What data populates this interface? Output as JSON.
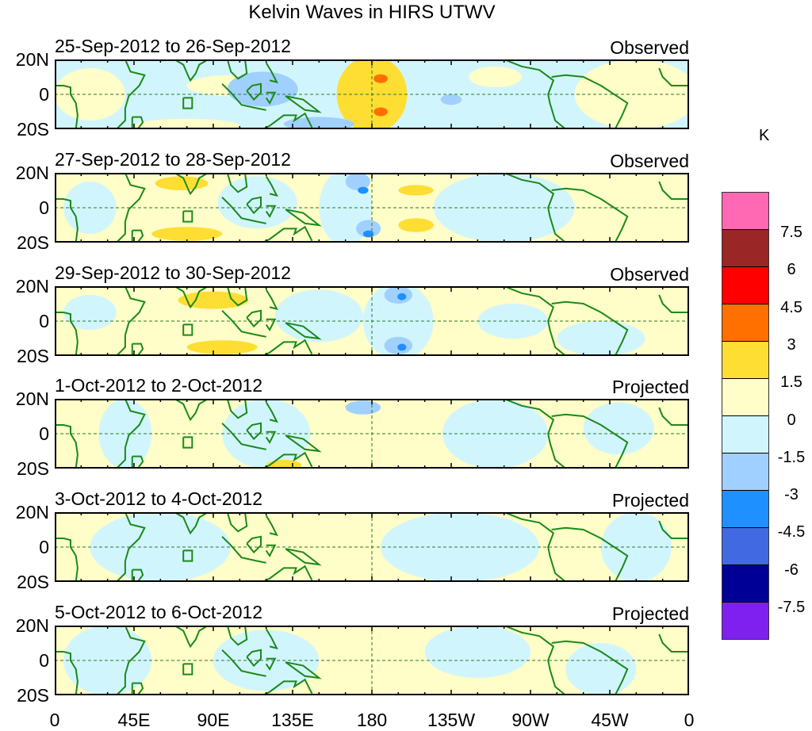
{
  "title": "Kelvin Waves in HIRS UTWV",
  "chart_data": {
    "type": "heatmap",
    "title": "Kelvin Waves in HIRS UTWV",
    "units": "K",
    "xlim": [
      0,
      360
    ],
    "ylim": [
      -20,
      20
    ],
    "x_ticks": [
      "0",
      "45E",
      "90E",
      "135E",
      "180",
      "135W",
      "90W",
      "45W",
      "0"
    ],
    "y_ticks": [
      "20N",
      "0",
      "20S"
    ],
    "colorbar": {
      "labels": [
        "7.5",
        "6",
        "4.5",
        "3",
        "1.5",
        "0",
        "-1.5",
        "-3",
        "-4.5",
        "-6",
        "-7.5"
      ],
      "colors": [
        "#ff69b4",
        "#9b2626",
        "#ff0000",
        "#ff7000",
        "#ffde33",
        "#fffdc8",
        "#d1f5fd",
        "#a0d0ff",
        "#1e90ff",
        "#4169e1",
        "#000096",
        "#8020f0"
      ]
    },
    "panels": [
      {
        "label": "25-Sep-2012 to 26-Sep-2012",
        "status": "Observed",
        "base": 0,
        "features": [
          [
            20,
            0,
            40,
            30,
            1
          ],
          [
            100,
            5,
            50,
            12,
            1
          ],
          [
            75,
            -18,
            60,
            8,
            1
          ],
          [
            180,
            0,
            40,
            44,
            2
          ],
          [
            185,
            9,
            8,
            5,
            3
          ],
          [
            185,
            -10,
            8,
            5,
            3
          ],
          [
            118,
            3,
            40,
            20,
            -2
          ],
          [
            150,
            -17,
            40,
            8,
            -2
          ],
          [
            330,
            0,
            70,
            40,
            1
          ],
          [
            250,
            10,
            30,
            12,
            1
          ],
          [
            225,
            -3,
            12,
            6,
            -2
          ]
        ]
      },
      {
        "label": "27-Sep-2012 to 28-Sep-2012",
        "status": "Observed",
        "base": 1,
        "features": [
          [
            115,
            3,
            45,
            30,
            -1
          ],
          [
            165,
            0,
            30,
            44,
            -1
          ],
          [
            172,
            15,
            14,
            10,
            -2
          ],
          [
            175,
            10,
            6,
            4,
            -3
          ],
          [
            178,
            -12,
            14,
            10,
            -2
          ],
          [
            178,
            -15,
            6,
            4,
            -3
          ],
          [
            72,
            14,
            30,
            8,
            2
          ],
          [
            75,
            -15,
            40,
            8,
            2
          ],
          [
            205,
            10,
            20,
            6,
            2
          ],
          [
            205,
            -10,
            20,
            8,
            2
          ],
          [
            255,
            0,
            80,
            40,
            -1
          ],
          [
            20,
            0,
            30,
            30,
            -1
          ]
        ]
      },
      {
        "label": "29-Sep-2012 to 30-Sep-2012",
        "status": "Observed",
        "base": 1,
        "features": [
          [
            90,
            12,
            40,
            10,
            2
          ],
          [
            95,
            -15,
            40,
            8,
            2
          ],
          [
            150,
            3,
            50,
            30,
            -1
          ],
          [
            195,
            0,
            40,
            44,
            -1
          ],
          [
            195,
            15,
            16,
            10,
            -2
          ],
          [
            197,
            14,
            5,
            4,
            -3
          ],
          [
            195,
            -14,
            16,
            10,
            -2
          ],
          [
            197,
            -15,
            5,
            4,
            -3
          ],
          [
            310,
            -10,
            50,
            20,
            -1
          ],
          [
            20,
            5,
            30,
            20,
            -1
          ],
          [
            260,
            0,
            40,
            20,
            -1
          ]
        ]
      },
      {
        "label": "1-Oct-2012 to 2-Oct-2012",
        "status": "Projected",
        "base": 1,
        "features": [
          [
            120,
            0,
            50,
            40,
            -1
          ],
          [
            165,
            0,
            40,
            44,
            0
          ],
          [
            175,
            15,
            20,
            8,
            -2
          ],
          [
            250,
            0,
            60,
            40,
            -1
          ],
          [
            40,
            0,
            30,
            40,
            -1
          ],
          [
            130,
            -18,
            20,
            6,
            2
          ],
          [
            320,
            3,
            40,
            30,
            -1
          ]
        ]
      },
      {
        "label": "3-Oct-2012 to 4-Oct-2012",
        "status": "Projected",
        "base": 1,
        "features": [
          [
            60,
            0,
            80,
            40,
            -1
          ],
          [
            230,
            0,
            90,
            40,
            -1
          ],
          [
            330,
            0,
            40,
            40,
            -1
          ]
        ]
      },
      {
        "label": "5-Oct-2012 to 6-Oct-2012",
        "status": "Projected",
        "base": 1,
        "features": [
          [
            30,
            0,
            50,
            40,
            -1
          ],
          [
            120,
            0,
            60,
            35,
            -1
          ],
          [
            240,
            5,
            60,
            30,
            -1
          ],
          [
            310,
            -5,
            40,
            30,
            -1
          ]
        ]
      }
    ]
  }
}
